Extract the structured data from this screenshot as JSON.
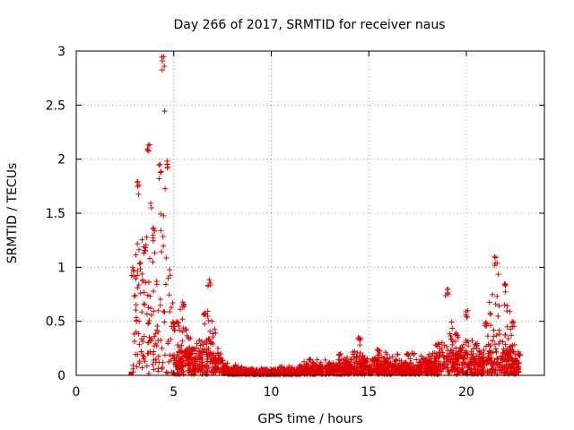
{
  "chart_data": {
    "type": "scatter",
    "title": "Day 266 of 2017, SRMTID for receiver naus",
    "xlabel": "GPS time / hours",
    "ylabel": "SRMTID / TECUs",
    "xlim": [
      0,
      24
    ],
    "ylim": [
      0,
      3
    ],
    "xticks": [
      0,
      5,
      10,
      15,
      20
    ],
    "xtick_labels": [
      "0",
      "5",
      "10",
      "15",
      "20"
    ],
    "yticks": [
      0,
      0.5,
      1,
      1.5,
      2,
      2.5,
      3
    ],
    "ytick_labels": [
      "0",
      "0.5",
      "1",
      "1.5",
      "2",
      "2.5",
      "3"
    ],
    "grid": true,
    "legend": "none",
    "marker": "+",
    "color": "#e00000",
    "outlier_markers": [
      2.8,
      17.2,
      19.9,
      22.4
    ],
    "series_profile": [
      {
        "x": 2.9,
        "y": 1.0
      },
      {
        "x": 3.2,
        "y": 1.8
      },
      {
        "x": 3.5,
        "y": 1.2
      },
      {
        "x": 3.7,
        "y": 2.2
      },
      {
        "x": 4.0,
        "y": 1.4
      },
      {
        "x": 4.3,
        "y": 2.0
      },
      {
        "x": 4.45,
        "y": 2.97
      },
      {
        "x": 4.7,
        "y": 2.1
      },
      {
        "x": 5.0,
        "y": 0.5
      },
      {
        "x": 5.5,
        "y": 0.7
      },
      {
        "x": 6.0,
        "y": 0.25
      },
      {
        "x": 6.6,
        "y": 0.6
      },
      {
        "x": 6.8,
        "y": 0.9
      },
      {
        "x": 7.5,
        "y": 0.15
      },
      {
        "x": 9.0,
        "y": 0.06
      },
      {
        "x": 10.5,
        "y": 0.08
      },
      {
        "x": 12.0,
        "y": 0.15
      },
      {
        "x": 13.5,
        "y": 0.2
      },
      {
        "x": 14.5,
        "y": 0.35
      },
      {
        "x": 15.5,
        "y": 0.25
      },
      {
        "x": 17.0,
        "y": 0.2
      },
      {
        "x": 18.5,
        "y": 0.3
      },
      {
        "x": 19.0,
        "y": 0.8
      },
      {
        "x": 19.5,
        "y": 0.4
      },
      {
        "x": 20.0,
        "y": 0.6
      },
      {
        "x": 20.5,
        "y": 0.3
      },
      {
        "x": 21.0,
        "y": 0.5
      },
      {
        "x": 21.5,
        "y": 1.1
      },
      {
        "x": 22.0,
        "y": 0.85
      },
      {
        "x": 22.4,
        "y": 0.5
      },
      {
        "x": 22.7,
        "y": 0.2
      }
    ]
  }
}
